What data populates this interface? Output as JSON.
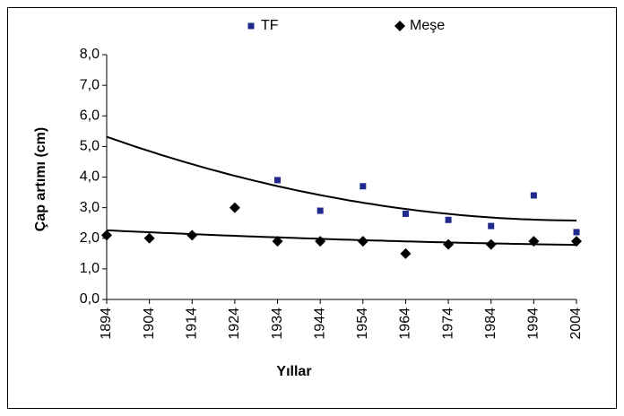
{
  "chart_data": {
    "type": "scatter",
    "xlabel": "Yıllar",
    "ylabel": "Çap artımı (cm)",
    "xlim": [
      1894,
      2004
    ],
    "xticks": [
      1894,
      1904,
      1914,
      1924,
      1934,
      1944,
      1954,
      1964,
      1974,
      1984,
      1994,
      2004
    ],
    "ylim": [
      0,
      8
    ],
    "yticks": [
      {
        "value": 0,
        "label": "0,0"
      },
      {
        "value": 1,
        "label": "1,0"
      },
      {
        "value": 2,
        "label": "2,0"
      },
      {
        "value": 3,
        "label": "3,0"
      },
      {
        "value": 4,
        "label": "4,0"
      },
      {
        "value": 5,
        "label": "5,0"
      },
      {
        "value": 6,
        "label": "6,0"
      },
      {
        "value": 7,
        "label": "7,0"
      },
      {
        "value": 8,
        "label": "8,0"
      }
    ],
    "legend": "top",
    "trendline": "polynomial",
    "series": [
      {
        "name": "TF",
        "color": "#1f2a8c",
        "marker": "square",
        "x": [
          1934,
          1944,
          1954,
          1964,
          1974,
          1984,
          1994,
          2004
        ],
        "values": [
          3.9,
          2.9,
          3.7,
          2.8,
          2.6,
          2.4,
          3.4,
          2.2
        ]
      },
      {
        "name": "Meşe",
        "color": "#000000",
        "marker": "diamond",
        "x": [
          1894,
          1904,
          1914,
          1924,
          1934,
          1944,
          1954,
          1964,
          1974,
          1984,
          1994,
          2004
        ],
        "values": [
          2.1,
          2.0,
          2.1,
          3.0,
          1.9,
          1.9,
          1.9,
          1.5,
          1.8,
          1.8,
          1.9,
          1.9
        ]
      }
    ]
  }
}
